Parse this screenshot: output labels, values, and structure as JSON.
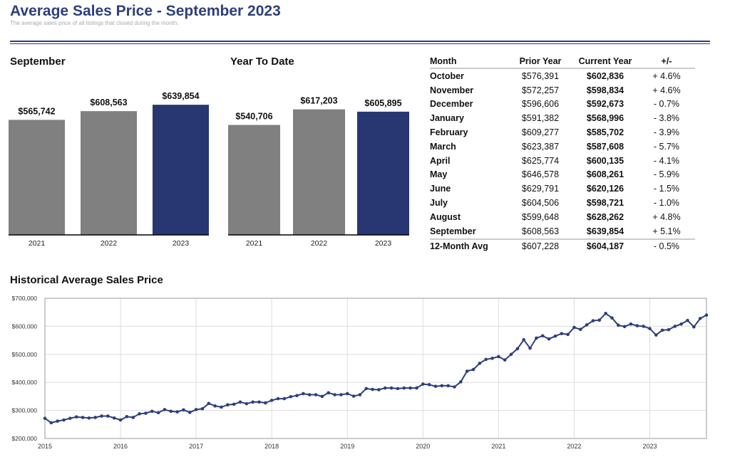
{
  "header": {
    "title": "Average Sales Price - September 2023",
    "subtitle": "The average sales price of all listings that closed during the month."
  },
  "colors": {
    "prior_bar": "#808080",
    "current_bar": "#283672",
    "line": "#2e3f7a",
    "title": "#2e3f7a"
  },
  "chart_data": [
    {
      "type": "bar",
      "title": "September",
      "categories": [
        "2021",
        "2022",
        "2023"
      ],
      "values": [
        565742,
        608563,
        639854
      ],
      "value_labels": [
        "$565,742",
        "$608,563",
        "$639,854"
      ],
      "highlight_index": 2
    },
    {
      "type": "bar",
      "title": "Year To Date",
      "categories": [
        "2021",
        "2022",
        "2023"
      ],
      "values": [
        540706,
        617203,
        605895
      ],
      "value_labels": [
        "$540,706",
        "$617,203",
        "$605,895"
      ],
      "highlight_index": 2
    },
    {
      "type": "table",
      "columns": [
        "Month",
        "Prior Year",
        "Current Year",
        "+/-"
      ],
      "rows": [
        [
          "October",
          "$576,391",
          "$602,836",
          "+ 4.6%"
        ],
        [
          "November",
          "$572,257",
          "$598,834",
          "+ 4.6%"
        ],
        [
          "December",
          "$596,606",
          "$592,673",
          "- 0.7%"
        ],
        [
          "January",
          "$591,382",
          "$568,996",
          "- 3.8%"
        ],
        [
          "February",
          "$609,277",
          "$585,702",
          "- 3.9%"
        ],
        [
          "March",
          "$623,387",
          "$587,608",
          "- 5.7%"
        ],
        [
          "April",
          "$625,774",
          "$600,135",
          "- 4.1%"
        ],
        [
          "May",
          "$646,578",
          "$608,261",
          "- 5.9%"
        ],
        [
          "June",
          "$629,791",
          "$620,126",
          "- 1.5%"
        ],
        [
          "July",
          "$604,506",
          "$598,721",
          "- 1.0%"
        ],
        [
          "August",
          "$599,648",
          "$628,262",
          "+ 4.8%"
        ],
        [
          "September",
          "$608,563",
          "$639,854",
          "+ 5.1%"
        ]
      ],
      "summary": [
        "12-Month Avg",
        "$607,228",
        "$604,187",
        "- 0.5%"
      ]
    },
    {
      "type": "line",
      "title": "Historical Average Sales Price",
      "x_start": "2015-01",
      "x_end": "2023-09",
      "x_ticks": [
        "2015",
        "2016",
        "2017",
        "2018",
        "2019",
        "2020",
        "2021",
        "2022",
        "2023"
      ],
      "y_ticks": [
        "$200,000",
        "$300,000",
        "$400,000",
        "$500,000",
        "$600,000",
        "$700,000"
      ],
      "ylim": [
        200000,
        700000
      ],
      "grid": true,
      "series": [
        {
          "values": [
            272000,
            256000,
            262000,
            266000,
            272000,
            277000,
            275000,
            273000,
            275000,
            280000,
            280000,
            273000,
            266000,
            278000,
            275000,
            288000,
            290000,
            297000,
            292000,
            303000,
            297000,
            295000,
            302000,
            293000,
            303000,
            306000,
            325000,
            316000,
            312000,
            320000,
            322000,
            330000,
            324000,
            330000,
            330000,
            327000,
            336000,
            342000,
            342000,
            349000,
            353000,
            360000,
            356000,
            356000,
            350000,
            363000,
            356000,
            356000,
            360000,
            351000,
            356000,
            378000,
            375000,
            374000,
            380000,
            380000,
            378000,
            380000,
            380000,
            380000,
            394000,
            392000,
            386000,
            388000,
            388000,
            384000,
            402000,
            440000,
            446000,
            468000,
            482000,
            486000,
            492000,
            480000,
            500000,
            520000,
            552000,
            522000,
            558000,
            566000,
            555000,
            565000,
            574000,
            571000,
            596000,
            589000,
            605000,
            620000,
            622000,
            646000,
            630000,
            604000,
            599000,
            608000,
            602000,
            600000,
            592000,
            569000,
            586000,
            588000,
            600000,
            608000,
            621000,
            598000,
            628000,
            640000
          ]
        }
      ]
    }
  ]
}
